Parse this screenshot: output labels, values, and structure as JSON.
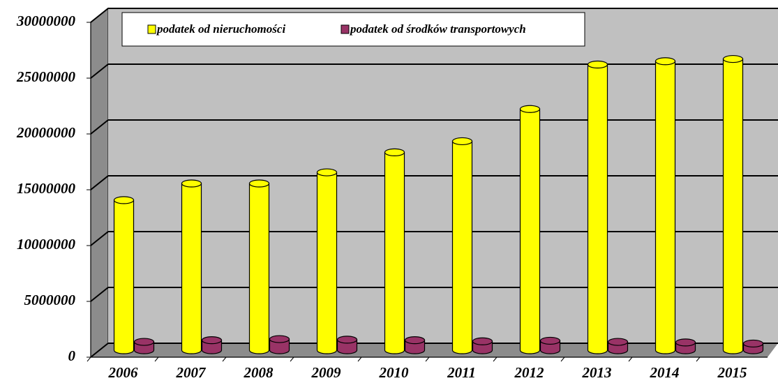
{
  "chart_data": {
    "type": "bar",
    "categories": [
      "2006",
      "2007",
      "2008",
      "2009",
      "2010",
      "2011",
      "2012",
      "2013",
      "2014",
      "2015"
    ],
    "series": [
      {
        "name": "podatek od nieruchomości",
        "color": "#ffff00",
        "values": [
          13500000,
          15000000,
          15000000,
          16000000,
          17800000,
          18800000,
          21700000,
          25700000,
          26000000,
          26200000
        ]
      },
      {
        "name": "podatek od środków transportowych",
        "color": "#993366",
        "values": [
          750000,
          900000,
          1000000,
          950000,
          900000,
          800000,
          850000,
          750000,
          700000,
          600000
        ]
      }
    ],
    "ylim": [
      0,
      30000000
    ],
    "yticks": [
      0,
      5000000,
      10000000,
      15000000,
      20000000,
      25000000,
      30000000
    ],
    "grid": true
  }
}
